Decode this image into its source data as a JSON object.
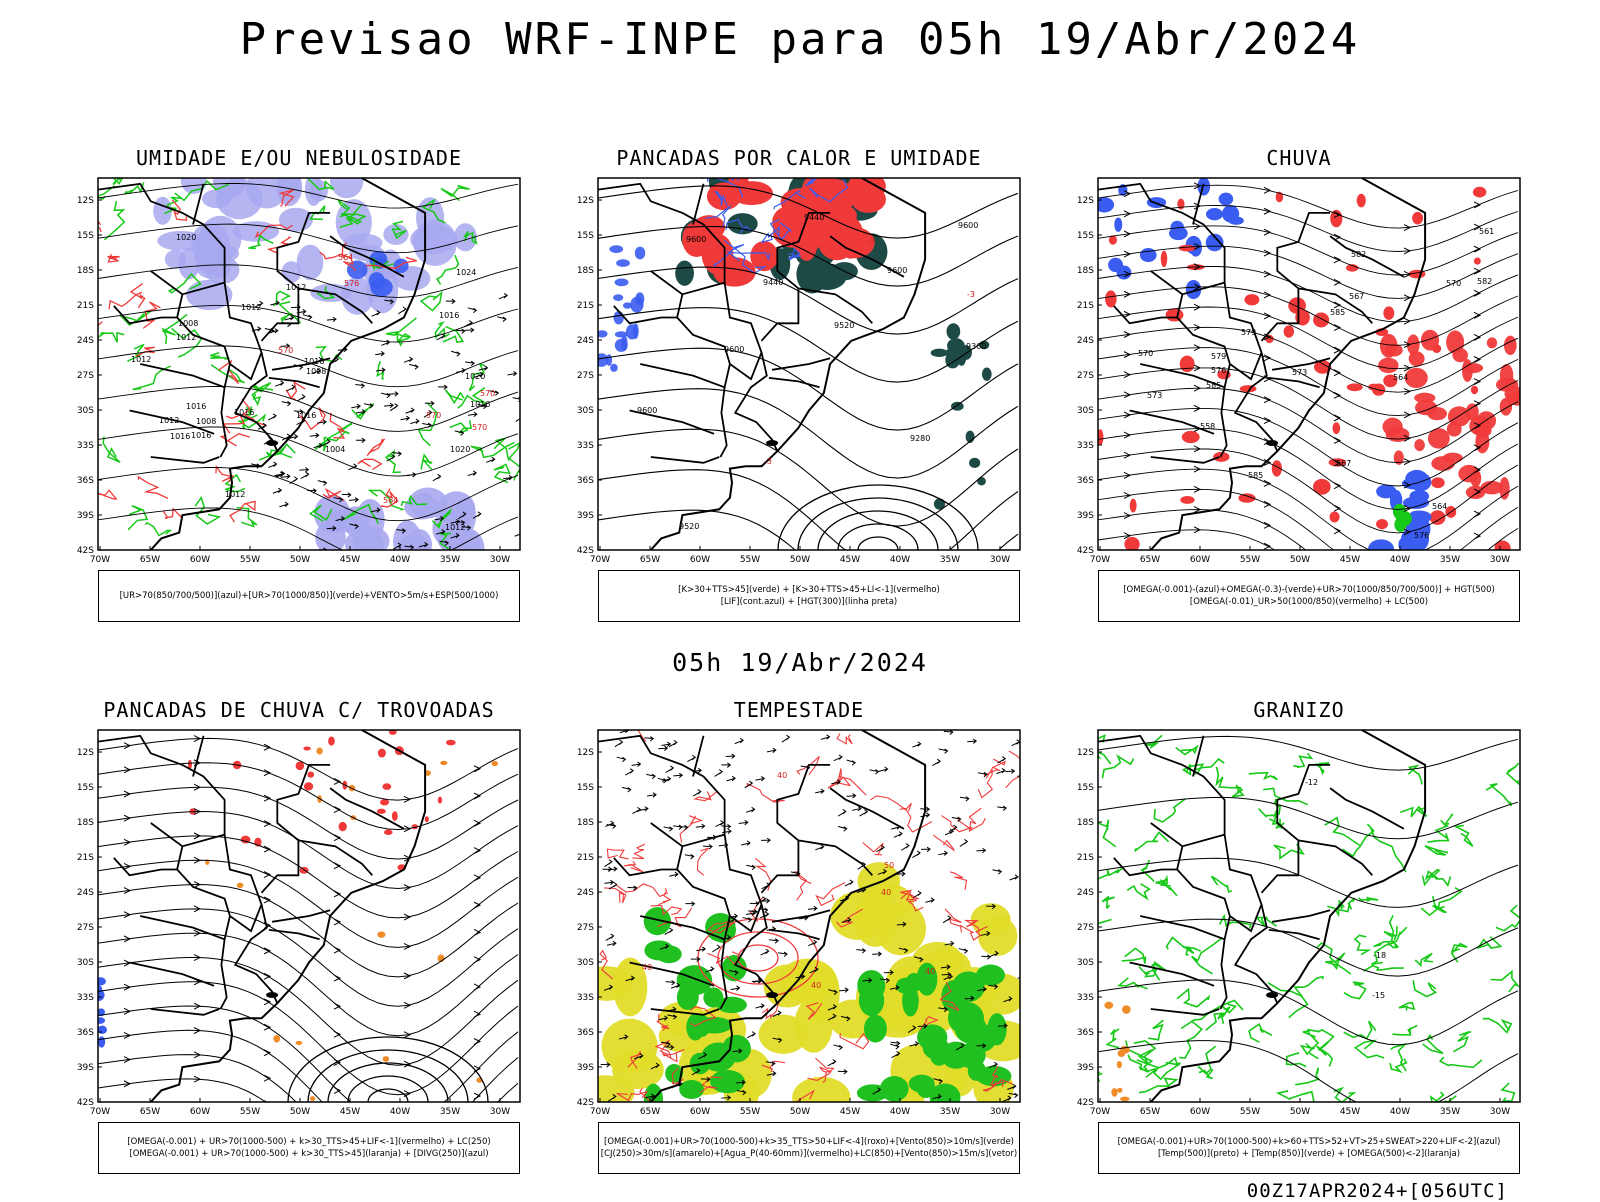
{
  "header": {
    "title": "Previsao WRF-INPE  para 05h 19/Abr/2024"
  },
  "middle_date": "05h 19/Abr/2024",
  "footer_stamp": "00Z17APR2024+[056UTC]",
  "axes": {
    "lat_labels": [
      "12S",
      "15S",
      "18S",
      "21S",
      "24S",
      "27S",
      "30S",
      "33S",
      "36S",
      "39S",
      "42S"
    ],
    "lon_labels": [
      "70W",
      "65W",
      "60W",
      "55W",
      "50W",
      "45W",
      "40W",
      "35W",
      "30W"
    ]
  },
  "colors": {
    "blue": "#3a5cf0",
    "green": "#18c818",
    "red": "#f03a3a",
    "lavender": "#a8a8f0",
    "darkteal": "#1e4a46",
    "orange": "#f08c28",
    "yellow": "#e0dc28",
    "lime": "#20c020"
  },
  "panels": [
    {
      "id": "umidade",
      "title": "UMIDADE E/OU NEBULOSIDADE",
      "legend": [
        "[UR>70(850/700/500)](azul)+[UR>70(1000/850)](verde)+VENTO>5m/s+ESP(500/1000)"
      ],
      "contour_labels": [
        "1012",
        "1012",
        "1016",
        "1016",
        "1020",
        "1024",
        "1020",
        "1016",
        "1020",
        "1016",
        "1016",
        "1012",
        "1016",
        "1012",
        "1008",
        "1008",
        "1012",
        "1004",
        "1016",
        "1012",
        "1008",
        "1016",
        "1012",
        "570",
        "570",
        "576",
        "570",
        "564",
        "564",
        "570"
      ]
    },
    {
      "id": "pancadas",
      "title": "PANCADAS POR CALOR E UMIDADE",
      "legend": [
        "[K>30+TTS>45](verde) + [K>30+TTS>45+LI<-1](vermelho)",
        "[LIF](cont.azul) + [HGT(300)](linha preta)"
      ],
      "contour_labels": [
        "9600",
        "9600",
        "9600",
        "9520",
        "9440",
        "9360",
        "9280",
        "9520",
        "9440",
        "9600",
        "-3",
        "-3",
        "-3",
        "9600"
      ]
    },
    {
      "id": "chuva",
      "title": "CHUVA",
      "legend": [
        "[OMEGA(-0.001)-(azul)+OMEGA(-0.3)-(verde)+UR>70(1000/850/700/500)] + HGT(500)",
        "[OMEGA(-0.01)_UR>50(1000/850)(vermelho) + LC(500)"
      ],
      "contour_labels": [
        "585",
        "585",
        "585",
        "582",
        "579",
        "576",
        "573",
        "570",
        "567",
        "564",
        "561",
        "558",
        "582",
        "579",
        "576",
        "573",
        "570",
        "567",
        "564"
      ]
    },
    {
      "id": "trovoadas",
      "title": "PANCADAS DE CHUVA C/ TROVOADAS",
      "legend": [
        "[OMEGA(-0.001) + UR>70(1000-500) + k>30_TTS>45+LIF<-1](vermelho) + LC(250)",
        "[OMEGA(-0.001) + UR>70(1000-500) + k>30_TTS>45](laranja) + [DIVG(250)](azul)"
      ],
      "contour_labels": []
    },
    {
      "id": "tempestade",
      "title": "TEMPESTADE",
      "legend": [
        "[OMEGA(-0.001)+UR>70(1000-500)+k>35_TTS>50+LIF<-4](roxo)+[Vento(850)>10m/s](verde)",
        "[CJ(250)>30m/s](amarelo)+[Agua_P(40-60mm)](vermelho)+LC(850)+[Vento(850)>15m/s](vetor)"
      ],
      "contour_labels": [
        "40",
        "40",
        "40",
        "50",
        "40",
        "40"
      ]
    },
    {
      "id": "granizo",
      "title": "GRANIZO",
      "legend": [
        "[OMEGA(-0.001)+UR>70(1000-500)+k>60+TTS>52+VT>25+SWEAT>220+LIF<-2](azul)",
        "[Temp(500)](preto) + [Temp(850)](verde) + [OMEGA(500)<-2](laranja)"
      ],
      "contour_labels": [
        "-12",
        "-15",
        "-18"
      ]
    }
  ]
}
